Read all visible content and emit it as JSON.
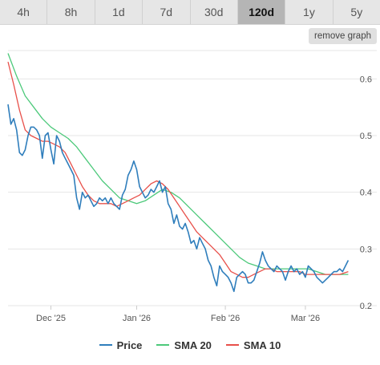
{
  "tabs": [
    {
      "label": "4h",
      "active": false
    },
    {
      "label": "8h",
      "active": false
    },
    {
      "label": "1d",
      "active": false
    },
    {
      "label": "7d",
      "active": false
    },
    {
      "label": "30d",
      "active": false
    },
    {
      "label": "120d",
      "active": true
    },
    {
      "label": "1y",
      "active": false
    },
    {
      "label": "5y",
      "active": false
    }
  ],
  "remove_graph_label": "remove graph",
  "colors": {
    "price": "#2f7ebc",
    "sma20": "#4cc97a",
    "sma10": "#e8504a",
    "grid": "#e6e6e6",
    "axis_text": "#555555"
  },
  "chart_data": {
    "type": "line",
    "x_ticks": [
      "Dec '25",
      "Jan '26",
      "Feb '26",
      "Mar '26"
    ],
    "x_tick_positions": [
      15,
      45,
      76,
      104
    ],
    "x_range": [
      0,
      120
    ],
    "ylim": [
      0.2,
      0.65
    ],
    "y_ticks": [
      0.2,
      0.3,
      0.4,
      0.5,
      0.6
    ],
    "grid": true,
    "legend_position": "bottom-center",
    "series": [
      {
        "name": "Price",
        "color_key": "price",
        "x": [
          0,
          1,
          2,
          3,
          4,
          5,
          6,
          7,
          8,
          9,
          10,
          11,
          12,
          13,
          14,
          15,
          16,
          17,
          18,
          19,
          20,
          21,
          22,
          23,
          24,
          25,
          26,
          27,
          28,
          29,
          30,
          31,
          32,
          33,
          34,
          35,
          36,
          37,
          38,
          39,
          40,
          41,
          42,
          43,
          44,
          45,
          46,
          47,
          48,
          49,
          50,
          51,
          52,
          53,
          54,
          55,
          56,
          57,
          58,
          59,
          60,
          61,
          62,
          63,
          64,
          65,
          66,
          67,
          68,
          69,
          70,
          71,
          72,
          73,
          74,
          75,
          76,
          77,
          78,
          79,
          80,
          81,
          82,
          83,
          84,
          85,
          86,
          87,
          88,
          89,
          90,
          91,
          92,
          93,
          94,
          95,
          96,
          97,
          98,
          99,
          100,
          101,
          102,
          103,
          104,
          105,
          106,
          107,
          108,
          109,
          110,
          111,
          112,
          113,
          114,
          115,
          116,
          117,
          118,
          119
        ],
        "values": [
          0.555,
          0.52,
          0.53,
          0.51,
          0.47,
          0.465,
          0.475,
          0.5,
          0.515,
          0.515,
          0.51,
          0.5,
          0.46,
          0.5,
          0.505,
          0.475,
          0.45,
          0.5,
          0.49,
          0.47,
          0.46,
          0.45,
          0.44,
          0.43,
          0.39,
          0.37,
          0.4,
          0.39,
          0.395,
          0.385,
          0.375,
          0.38,
          0.39,
          0.385,
          0.39,
          0.38,
          0.39,
          0.38,
          0.375,
          0.37,
          0.395,
          0.405,
          0.43,
          0.44,
          0.455,
          0.44,
          0.41,
          0.4,
          0.39,
          0.395,
          0.405,
          0.4,
          0.41,
          0.42,
          0.4,
          0.41,
          0.38,
          0.37,
          0.345,
          0.36,
          0.34,
          0.335,
          0.345,
          0.33,
          0.31,
          0.315,
          0.3,
          0.32,
          0.31,
          0.3,
          0.28,
          0.27,
          0.25,
          0.235,
          0.27,
          0.26,
          0.255,
          0.25,
          0.24,
          0.225,
          0.25,
          0.255,
          0.26,
          0.255,
          0.24,
          0.24,
          0.245,
          0.26,
          0.275,
          0.295,
          0.28,
          0.27,
          0.265,
          0.26,
          0.27,
          0.265,
          0.26,
          0.245,
          0.26,
          0.27,
          0.26,
          0.265,
          0.255,
          0.26,
          0.25,
          0.27,
          0.265,
          0.26,
          0.25,
          0.245,
          0.24,
          0.245,
          0.25,
          0.255,
          0.26,
          0.26,
          0.265,
          0.26,
          0.27,
          0.28
        ]
      },
      {
        "name": "SMA 20",
        "color_key": "sma20",
        "x": [
          0,
          3,
          6,
          9,
          12,
          15,
          18,
          21,
          24,
          27,
          30,
          33,
          36,
          39,
          42,
          45,
          48,
          51,
          54,
          57,
          60,
          63,
          66,
          69,
          72,
          75,
          78,
          81,
          84,
          87,
          90,
          93,
          96,
          99,
          102,
          105,
          108,
          111,
          114,
          117,
          119
        ],
        "values": [
          0.645,
          0.605,
          0.57,
          0.55,
          0.53,
          0.515,
          0.505,
          0.495,
          0.48,
          0.46,
          0.44,
          0.42,
          0.405,
          0.39,
          0.385,
          0.38,
          0.385,
          0.395,
          0.405,
          0.4,
          0.39,
          0.375,
          0.36,
          0.345,
          0.33,
          0.315,
          0.3,
          0.285,
          0.275,
          0.27,
          0.265,
          0.265,
          0.265,
          0.265,
          0.265,
          0.265,
          0.26,
          0.255,
          0.255,
          0.255,
          0.255
        ]
      },
      {
        "name": "SMA 10",
        "color_key": "sma10",
        "x": [
          0,
          2,
          4,
          6,
          8,
          10,
          12,
          14,
          16,
          18,
          20,
          22,
          24,
          26,
          28,
          30,
          32,
          34,
          36,
          38,
          40,
          42,
          44,
          46,
          48,
          50,
          52,
          54,
          56,
          58,
          60,
          62,
          64,
          66,
          68,
          70,
          72,
          74,
          76,
          78,
          80,
          82,
          84,
          86,
          88,
          90,
          92,
          94,
          96,
          98,
          100,
          102,
          104,
          106,
          108,
          110,
          112,
          114,
          116,
          119
        ],
        "values": [
          0.63,
          0.59,
          0.545,
          0.51,
          0.5,
          0.495,
          0.49,
          0.49,
          0.485,
          0.48,
          0.47,
          0.45,
          0.43,
          0.41,
          0.395,
          0.385,
          0.38,
          0.38,
          0.38,
          0.375,
          0.38,
          0.385,
          0.39,
          0.395,
          0.405,
          0.415,
          0.42,
          0.415,
          0.405,
          0.39,
          0.375,
          0.36,
          0.345,
          0.33,
          0.32,
          0.31,
          0.3,
          0.29,
          0.275,
          0.26,
          0.255,
          0.25,
          0.25,
          0.255,
          0.26,
          0.265,
          0.265,
          0.26,
          0.26,
          0.26,
          0.26,
          0.26,
          0.255,
          0.255,
          0.255,
          0.255,
          0.255,
          0.255,
          0.255,
          0.26
        ]
      }
    ]
  }
}
